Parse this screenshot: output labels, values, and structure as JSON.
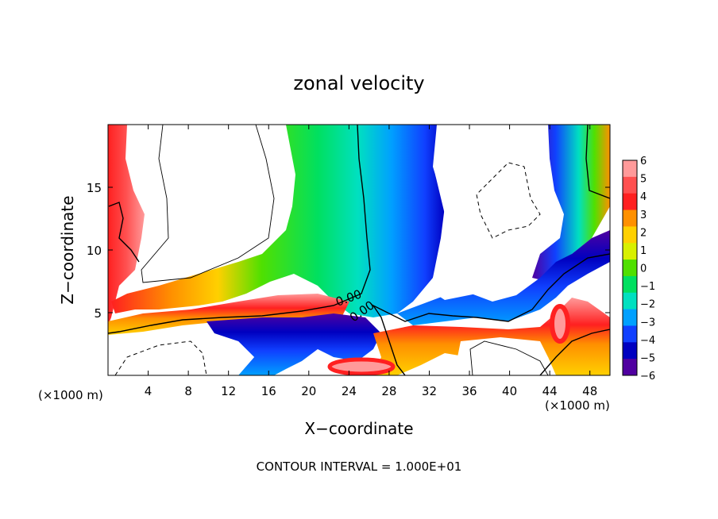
{
  "chart_data": {
    "type": "heatmap",
    "title": "zonal velocity",
    "xlabel": "X−coordinate",
    "ylabel": "Z−coordinate",
    "x_unit_left": "(×1000 m)",
    "x_unit_right": "(×1000 m)",
    "xlim": [
      0,
      50
    ],
    "ylim": [
      0,
      20
    ],
    "x_ticks": [
      4,
      8,
      12,
      16,
      20,
      24,
      28,
      32,
      36,
      40,
      44,
      48
    ],
    "y_ticks": [
      5,
      10,
      15
    ],
    "colorbar_levels": [
      6,
      5,
      4,
      3,
      2,
      1,
      0,
      -1,
      -2,
      -3,
      -4,
      -5,
      -6
    ],
    "colorbar_colors": [
      "#ff9a9a",
      "#ff5050",
      "#ff2020",
      "#ff9000",
      "#ffd000",
      "#d8f000",
      "#50e000",
      "#00e060",
      "#00e0c0",
      "#00a0ff",
      "#1040ff",
      "#0000c0",
      "#5000a0"
    ],
    "contour_labels": [
      "0.00",
      "0.00"
    ],
    "footer": "CONTOUR INTERVAL = 1.000E+01",
    "regions": [
      {
        "name": "left-red-wall",
        "x": [
          0,
          3
        ],
        "z": [
          4,
          20
        ],
        "level": 5
      },
      {
        "name": "low-level-inflow",
        "x": [
          0,
          18
        ],
        "z": [
          3,
          7
        ],
        "level": 3
      },
      {
        "name": "jet-core",
        "x": [
          19,
          27
        ],
        "z": [
          7,
          20
        ],
        "level": 1
      },
      {
        "name": "downdraft",
        "x": [
          28,
          33
        ],
        "z": [
          5,
          20
        ],
        "level": -4
      },
      {
        "name": "right-red-wall",
        "x": [
          48,
          50
        ],
        "z": [
          14,
          20
        ],
        "level": 4
      },
      {
        "name": "low-blue",
        "x": [
          12,
          31
        ],
        "z": [
          0,
          4
        ],
        "level": -3
      },
      {
        "name": "surface-band",
        "x": [
          26,
          50
        ],
        "z": [
          0,
          4
        ],
        "level": 4
      }
    ]
  }
}
